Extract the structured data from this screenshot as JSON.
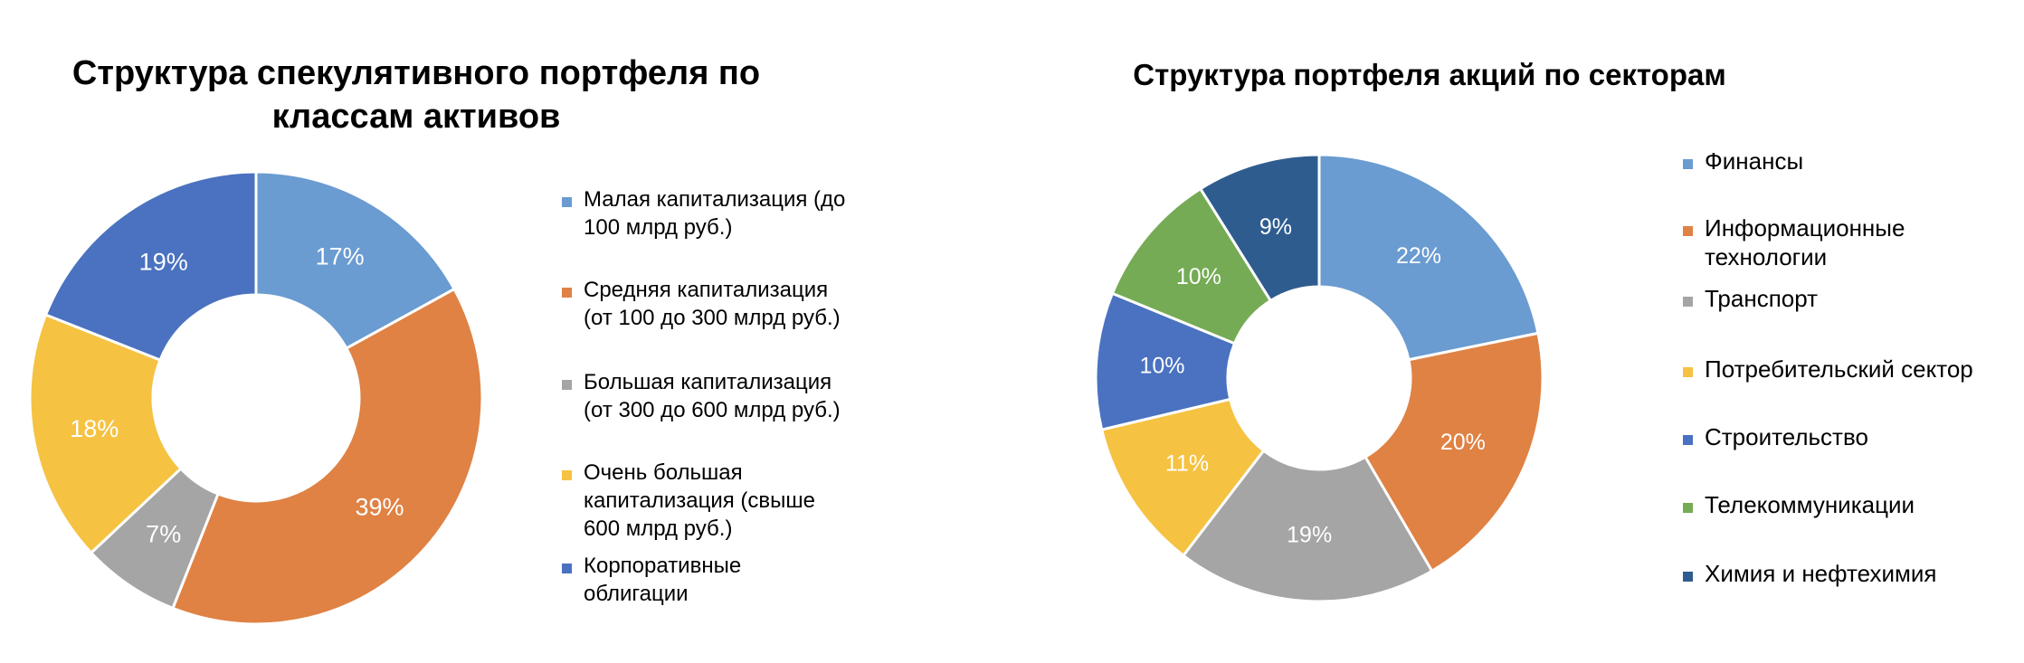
{
  "chart_data": [
    {
      "type": "pie",
      "title": "Структура спекулятивного портфеля по\nклассам активов",
      "categories": [
        "Малая капитализация (до\n100 млрд руб.)",
        "Средняя капитализация\n(от 100 до 300 млрд руб.)",
        "Большая капитализация\n(от 300 до 600 млрд руб.)",
        "Очень большая\nкапитализация (свыше\n600 млрд руб.)",
        "Корпоративные\nоблигации"
      ],
      "values": [
        17,
        39,
        7,
        18,
        19
      ],
      "data_labels": [
        "17%",
        "39%",
        "7%",
        "18%",
        "19%"
      ],
      "colors": [
        "#6a9bd1",
        "#df8244",
        "#a5a5a5",
        "#f5c242",
        "#4a72c0"
      ],
      "donut": true,
      "legend_position": "right"
    },
    {
      "type": "pie",
      "title": "Структура портфеля акций по секторам",
      "categories": [
        "Финансы",
        "Информационные\nтехнологии",
        "Транспорт",
        "Потребительский сектор",
        "Строительство",
        "Телекоммуникации",
        "Химия и нефтехимия"
      ],
      "values": [
        22,
        20,
        19,
        11,
        10,
        10,
        9
      ],
      "data_labels": [
        "22%",
        "20%",
        "19%",
        "11%",
        "10%",
        "10%",
        "9%"
      ],
      "colors": [
        "#6a9bd1",
        "#df8244",
        "#a5a5a5",
        "#f5c242",
        "#4a72c0",
        "#75ab55",
        "#2f5c8f"
      ],
      "donut": true,
      "legend_position": "right"
    }
  ]
}
